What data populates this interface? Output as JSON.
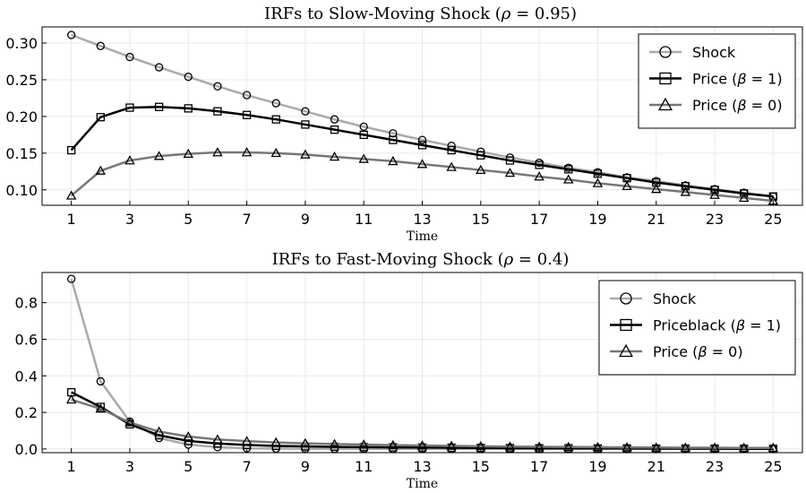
{
  "chart_data": [
    {
      "type": "line",
      "title": "IRFs to Slow-Moving Shock (ρ = 0.95)",
      "title_parts": [
        "IRFs to Slow-Moving Shock (",
        "ρ",
        " = 0.95)"
      ],
      "xlabel": "Time",
      "ylabel": "",
      "xlim": [
        0,
        26
      ],
      "ylim": [
        0.079,
        0.322
      ],
      "x_ticks": [
        1,
        3,
        5,
        7,
        9,
        11,
        13,
        15,
        17,
        19,
        21,
        23,
        25
      ],
      "y_ticks": [
        0.1,
        0.15,
        0.2,
        0.25,
        0.3
      ],
      "y_tick_labels": [
        "0.10",
        "0.15",
        "0.20",
        "0.25",
        "0.30"
      ],
      "grid": true,
      "legend_position": "top-right",
      "x": [
        1,
        2,
        3,
        4,
        5,
        6,
        7,
        8,
        9,
        10,
        11,
        12,
        13,
        14,
        15,
        16,
        17,
        18,
        19,
        20,
        21,
        22,
        23,
        24,
        25
      ],
      "series": [
        {
          "name": "Shock",
          "legend_parts": [
            "Shock"
          ],
          "color": "#aaaaaa",
          "marker": "circle",
          "values": [
            0.311,
            0.296,
            0.281,
            0.267,
            0.254,
            0.241,
            0.229,
            0.218,
            0.207,
            0.196,
            0.186,
            0.177,
            0.168,
            0.16,
            0.152,
            0.144,
            0.137,
            0.13,
            0.124,
            0.117,
            0.112,
            0.106,
            0.101,
            0.096,
            0.091
          ]
        },
        {
          "name": "Price (β = 1)",
          "legend_parts": [
            "Price (",
            "β",
            " = 1)"
          ],
          "color": "#000000",
          "marker": "square",
          "values": [
            0.154,
            0.199,
            0.212,
            0.213,
            0.211,
            0.207,
            0.202,
            0.196,
            0.189,
            0.182,
            0.175,
            0.168,
            0.161,
            0.154,
            0.147,
            0.14,
            0.134,
            0.128,
            0.122,
            0.116,
            0.11,
            0.105,
            0.1,
            0.095,
            0.091
          ]
        },
        {
          "name": "Price (β = 0)",
          "legend_parts": [
            "Price (",
            "β",
            " = 0)"
          ],
          "color": "#777777",
          "marker": "triangle",
          "values": [
            0.092,
            0.126,
            0.14,
            0.146,
            0.149,
            0.151,
            0.151,
            0.15,
            0.148,
            0.145,
            0.142,
            0.139,
            0.135,
            0.131,
            0.127,
            0.123,
            0.118,
            0.114,
            0.109,
            0.105,
            0.101,
            0.097,
            0.093,
            0.089,
            0.085
          ]
        }
      ]
    },
    {
      "type": "line",
      "title": "IRFs to Fast-Moving Shock (ρ = 0.4)",
      "title_parts": [
        "IRFs to Fast-Moving Shock (",
        "ρ",
        " = 0.4)"
      ],
      "xlabel": "Time",
      "ylabel": "",
      "xlim": [
        0,
        26
      ],
      "ylim": [
        -0.02,
        0.965
      ],
      "x_ticks": [
        1,
        3,
        5,
        7,
        9,
        11,
        13,
        15,
        17,
        19,
        21,
        23,
        25
      ],
      "y_ticks": [
        0.0,
        0.2,
        0.4,
        0.6,
        0.8
      ],
      "y_tick_labels": [
        "0.0",
        "0.2",
        "0.4",
        "0.6",
        "0.8"
      ],
      "grid": true,
      "legend_position": "top-right",
      "x": [
        1,
        2,
        3,
        4,
        5,
        6,
        7,
        8,
        9,
        10,
        11,
        12,
        13,
        14,
        15,
        16,
        17,
        18,
        19,
        20,
        21,
        22,
        23,
        24,
        25
      ],
      "series": [
        {
          "name": "Shock",
          "legend_parts": [
            "Shock"
          ],
          "color": "#aaaaaa",
          "marker": "circle",
          "values": [
            0.93,
            0.37,
            0.15,
            0.06,
            0.024,
            0.01,
            0.004,
            0.002,
            0.001,
            0.0,
            0.0,
            0.0,
            0.0,
            0.0,
            0.0,
            0.0,
            0.0,
            0.0,
            0.0,
            0.0,
            0.0,
            0.0,
            0.0,
            0.0,
            0.0
          ]
        },
        {
          "name": "Priceblack (β = 1)",
          "legend_parts": [
            "Priceblack (",
            "β",
            " = 1)"
          ],
          "color": "#000000",
          "marker": "square",
          "values": [
            0.31,
            0.23,
            0.135,
            0.075,
            0.044,
            0.03,
            0.022,
            0.017,
            0.014,
            0.012,
            0.01,
            0.009,
            0.008,
            0.007,
            0.006,
            0.005,
            0.004,
            0.004,
            0.003,
            0.003,
            0.002,
            0.002,
            0.002,
            0.001,
            0.001
          ]
        },
        {
          "name": "Price (β = 0)",
          "legend_parts": [
            "Price (",
            "β",
            " = 0)"
          ],
          "color": "#777777",
          "marker": "triangle",
          "values": [
            0.27,
            0.22,
            0.145,
            0.095,
            0.068,
            0.052,
            0.043,
            0.036,
            0.031,
            0.027,
            0.024,
            0.021,
            0.019,
            0.017,
            0.015,
            0.013,
            0.012,
            0.011,
            0.01,
            0.009,
            0.008,
            0.007,
            0.007,
            0.006,
            0.006
          ]
        }
      ]
    }
  ]
}
